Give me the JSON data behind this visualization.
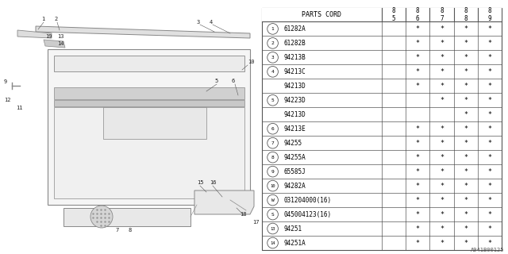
{
  "ref_code": "A941B00125",
  "bg_color": "#ffffff",
  "text_color": "#000000",
  "line_color": "#555555",
  "rows": [
    {
      "num": "1",
      "part": "61282A",
      "86": "*",
      "87": "*",
      "88": "*",
      "89": "*",
      "has85": false
    },
    {
      "num": "2",
      "part": "61282B",
      "86": "*",
      "87": "*",
      "88": "*",
      "89": "*",
      "has85": false
    },
    {
      "num": "3",
      "part": "94213B",
      "86": "*",
      "87": "*",
      "88": "*",
      "89": "*",
      "has85": false
    },
    {
      "num": "4",
      "part": "94213C",
      "86": "*",
      "87": "*",
      "88": "*",
      "89": "*",
      "has85": false
    },
    {
      "num": "",
      "part": "94213D",
      "86": "*",
      "87": "*",
      "88": "*",
      "89": "*",
      "has85": false
    },
    {
      "num": "5",
      "part": "94223D",
      "86": "",
      "87": "*",
      "88": "*",
      "89": "*",
      "has85": false
    },
    {
      "num": "",
      "part": "94213D",
      "86": "",
      "87": "",
      "88": "*",
      "89": "*",
      "has85": false
    },
    {
      "num": "6",
      "part": "94213E",
      "86": "*",
      "87": "*",
      "88": "*",
      "89": "*",
      "has85": false
    },
    {
      "num": "7",
      "part": "94255",
      "86": "*",
      "87": "*",
      "88": "*",
      "89": "*",
      "has85": false
    },
    {
      "num": "8",
      "part": "94255A",
      "86": "*",
      "87": "*",
      "88": "*",
      "89": "*",
      "has85": false
    },
    {
      "num": "9",
      "part": "65585J",
      "86": "*",
      "87": "*",
      "88": "*",
      "89": "*",
      "has85": false
    },
    {
      "num": "10",
      "part": "94282A",
      "86": "*",
      "87": "*",
      "88": "*",
      "89": "*",
      "has85": false
    },
    {
      "num": "11",
      "part": "031204000(16)",
      "86": "*",
      "87": "*",
      "88": "*",
      "89": "*",
      "has85": false,
      "prefix": "W"
    },
    {
      "num": "12",
      "part": "045004123(16)",
      "86": "*",
      "87": "*",
      "88": "*",
      "89": "*",
      "has85": false,
      "prefix": "S"
    },
    {
      "num": "13",
      "part": "94251",
      "86": "*",
      "87": "*",
      "88": "*",
      "89": "*",
      "has85": false
    },
    {
      "num": "14",
      "part": "94251A",
      "86": "*",
      "87": "*",
      "88": "*",
      "89": "*",
      "has85": false
    }
  ]
}
